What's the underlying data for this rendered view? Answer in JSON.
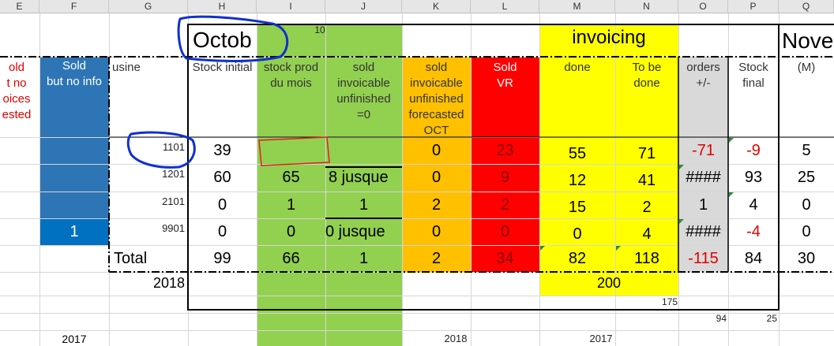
{
  "column_headers": [
    "E",
    "F",
    "G",
    "H",
    "I",
    "J",
    "K",
    "L",
    "M",
    "N",
    "O",
    "P",
    "Q"
  ],
  "title_left": "Octob",
  "title_right": "Nove",
  "invoicing_title": "invoicing",
  "note_10": "10",
  "headers": {
    "e": "old\nt no\noices\nested",
    "f": "Sold\nbut no info",
    "g": "usine",
    "h": "Stock initial",
    "i": "stock prod\ndu mois",
    "j": "sold\ninvoicable\nunfinished\n=0",
    "k": "sold\ninvoicable\nunfinished\nforecasted\nOCT",
    "l": "Sold\nVR",
    "m": "done",
    "n": "To be\ndone",
    "o": "orders\n+/-",
    "p": "Stock\nfinal",
    "q": "(M)"
  },
  "rows": [
    {
      "usine": "1101",
      "h": "39",
      "i": "",
      "j": "",
      "k": "0",
      "l": "23",
      "m": "55",
      "n": "71",
      "o": "-71",
      "p": "-9",
      "q": "5",
      "f": ""
    },
    {
      "usine": "1201",
      "h": "60",
      "i": "65",
      "j": "8 jusque",
      "k": "0",
      "l": "9",
      "m": "12",
      "n": "41",
      "o": "####",
      "p": "93",
      "q": "25",
      "f": ""
    },
    {
      "usine": "2101",
      "h": "0",
      "i": "1",
      "j": "1",
      "k": "2",
      "l": "2",
      "m": "15",
      "n": "2",
      "o": "1",
      "p": "4",
      "q": "0",
      "f": ""
    },
    {
      "usine": "9901",
      "h": "0",
      "i": "0",
      "j": "0 jusque",
      "k": "0",
      "l": "0",
      "m": "0",
      "n": "4",
      "o": "####",
      "p": "-4",
      "q": "0",
      "f": "1"
    }
  ],
  "total": {
    "label": "Total",
    "h": "99",
    "i": "66",
    "j": "1",
    "k": "2",
    "l": "34",
    "m": "82",
    "n": "118",
    "o": "-115",
    "p": "84",
    "q": "30"
  },
  "year_2018": "2018",
  "invoice_total": "200",
  "value_175": "175",
  "value_94": "94",
  "value_25": "25",
  "footer": {
    "f": "2017",
    "k": "2018",
    "m": "2017"
  },
  "colors": {
    "blue": "#2e75b6",
    "blue_bright": "#0070c0",
    "green": "#92d050",
    "orange": "#ffc000",
    "red": "#ff0000",
    "yellow": "#ffff00",
    "gray": "#d9d9d9",
    "annot_blue": "#1030d0",
    "annot_red": "#e02020"
  }
}
